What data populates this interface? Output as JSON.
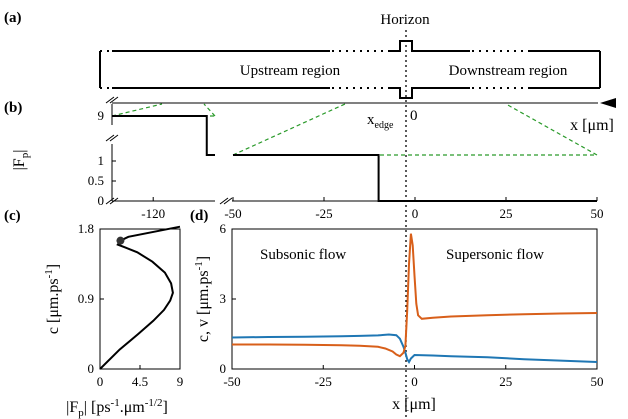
{
  "panels": {
    "a": {
      "label": "(a)",
      "horizon_label": "Horizon",
      "upstream_label": "Upstream region",
      "downstream_label": "Downstream region"
    },
    "b": {
      "label": "(b)",
      "ylabel_main": "|F",
      "ylabel_sub": "p",
      "ylabel_close": "|",
      "xedge_main": "x",
      "xedge_sub": "edge",
      "xedge_zero": "0",
      "xaxis_label": "x [μm]",
      "left_yticks": [
        "9",
        "1",
        "0.5",
        "0"
      ],
      "left_xticks": [
        "-120"
      ],
      "right_xticks": [
        "-50",
        "-25",
        "0",
        "25",
        "50"
      ]
    },
    "c": {
      "label": "(c)",
      "ylabel": "c [μm.ps",
      "ylabel_sup": "-1",
      "ylabel_close": "]",
      "xlabel_parts": [
        "|F",
        "p",
        "| [ps",
        "-1",
        ".μm",
        "-1/2",
        "]"
      ],
      "yticks": [
        "0",
        "0.9",
        "1.8"
      ],
      "xticks": [
        "0",
        "4.5",
        "9"
      ]
    },
    "d": {
      "label": "(d)",
      "ylabel": "c, v [μm.ps",
      "ylabel_sup": "-1",
      "ylabel_close": "]",
      "xlabel": "x [μm]",
      "yticks": [
        "0",
        "3",
        "6"
      ],
      "xticks": [
        "-50",
        "-25",
        "0",
        "25",
        "50"
      ],
      "subsonic_label": "Subsonic flow",
      "supersonic_label": "Supersonic flow"
    }
  },
  "chart_data": [
    {
      "panel": "b",
      "type": "line",
      "xlabel": "x [μm]",
      "ylabel": "|Fp|",
      "xlim": [
        -130,
        50
      ],
      "series": [
        {
          "x": [
            -130,
            -107,
            -107,
            -10,
            -10,
            50
          ],
          "y": [
            9,
            9,
            1.15,
            1.15,
            0,
            0
          ],
          "color": "#000000"
        }
      ]
    },
    {
      "panel": "c",
      "type": "line",
      "xlabel": "|Fp| [ps-1.μm-1/2]",
      "ylabel": "c [μm.ps-1]",
      "xlim": [
        0,
        9
      ],
      "ylim": [
        0,
        1.8
      ],
      "series": [
        {
          "x": [
            0,
            2.2,
            4.3,
            6.0,
            7.2,
            7.9,
            8.2,
            8.0,
            7.3,
            5.9,
            4.2,
            2.9,
            2.0,
            2.3,
            3.2,
            9.0
          ],
          "y": [
            0,
            0.25,
            0.45,
            0.62,
            0.76,
            0.88,
            0.98,
            1.1,
            1.24,
            1.38,
            1.5,
            1.56,
            1.6,
            1.65,
            1.7,
            1.83
          ],
          "color": "#000000"
        }
      ],
      "marker": {
        "x": 2.3,
        "y": 1.65
      }
    },
    {
      "panel": "d",
      "type": "line",
      "xlabel": "x [μm]",
      "ylabel": "c, v [μm.ps-1]",
      "xlim": [
        -50,
        50
      ],
      "ylim": [
        0,
        6
      ],
      "series": [
        {
          "color": "#1f77b4",
          "x": [
            -50,
            -40,
            -30,
            -20,
            -15,
            -10,
            -7,
            -5,
            -4,
            -3,
            -2.5,
            -2,
            -1.5,
            -1,
            0,
            5,
            10,
            20,
            30,
            40,
            50
          ],
          "y": [
            1.35,
            1.37,
            1.38,
            1.4,
            1.42,
            1.44,
            1.48,
            1.45,
            1.3,
            0.95,
            0.7,
            0.42,
            0.3,
            0.45,
            0.6,
            0.58,
            0.55,
            0.5,
            0.42,
            0.36,
            0.3
          ]
        },
        {
          "color": "#d85f1a",
          "x": [
            -50,
            -40,
            -30,
            -20,
            -15,
            -10,
            -8,
            -6,
            -5,
            -4,
            -3,
            -2.5,
            -2,
            -1.5,
            -1,
            -0.5,
            0,
            0.5,
            1,
            2,
            5,
            10,
            20,
            30,
            40,
            50
          ],
          "y": [
            1.05,
            1.05,
            1.04,
            1.02,
            1.0,
            0.95,
            0.88,
            0.75,
            0.62,
            0.55,
            0.7,
            1.0,
            2.5,
            4.5,
            5.8,
            5.3,
            4.0,
            2.8,
            2.3,
            2.15,
            2.2,
            2.25,
            2.3,
            2.35,
            2.38,
            2.4
          ]
        }
      ]
    }
  ]
}
